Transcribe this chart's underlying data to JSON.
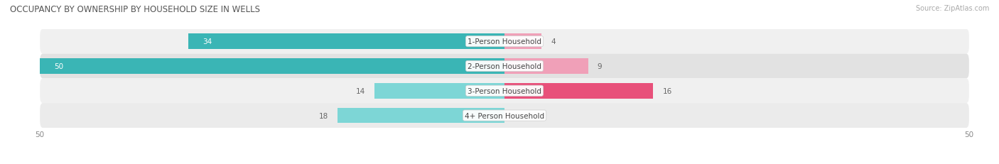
{
  "title": "OCCUPANCY BY OWNERSHIP BY HOUSEHOLD SIZE IN WELLS",
  "source": "Source: ZipAtlas.com",
  "categories": [
    "1-Person Household",
    "2-Person Household",
    "3-Person Household",
    "4+ Person Household"
  ],
  "owner_values": [
    34,
    50,
    14,
    18
  ],
  "renter_values": [
    4,
    9,
    16,
    0
  ],
  "max_val": 50,
  "owner_color_dark": "#3ab5b5",
  "owner_color_light": "#7dd6d6",
  "renter_color_row0": "#f0a0b8",
  "renter_color_row1": "#f0a0b8",
  "renter_color_row2": "#e8507a",
  "renter_color_row3": "#f0c0d0",
  "renter_colors": [
    "#f0a0b8",
    "#f0a0b8",
    "#e8507a",
    "#f0c0d0"
  ],
  "owner_colors": [
    "#3ab5b5",
    "#3ab5b5",
    "#7dd6d6",
    "#7dd6d6"
  ],
  "row_bg_odd": "#f0f0f0",
  "row_bg_even": "#e4e4e4",
  "title_fontsize": 8.5,
  "label_fontsize": 7.5,
  "value_fontsize": 7.5,
  "tick_fontsize": 7.5,
  "legend_fontsize": 7.5,
  "source_fontsize": 7
}
